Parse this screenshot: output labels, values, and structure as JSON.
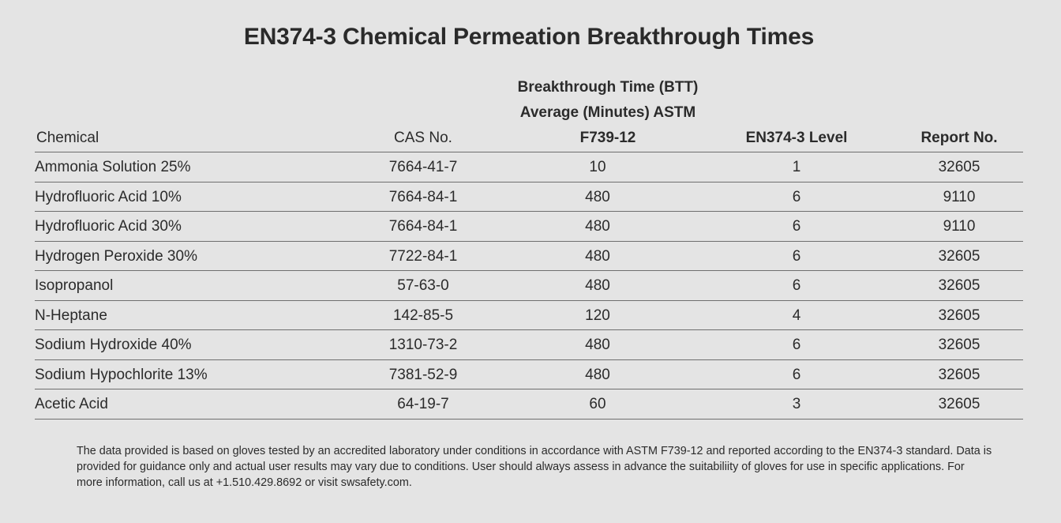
{
  "title": "EN374-3 Chemical Permeation Breakthrough Times",
  "headers": {
    "chemical": "Chemical",
    "cas": "CAS No.",
    "btt_line1": "Breakthrough Time (BTT)",
    "btt_line2": "Average (Minutes) ASTM",
    "btt_line3": "F739-12",
    "level": "EN374-3 Level",
    "report": "Report No."
  },
  "rows": [
    {
      "chemical": "Ammonia Solution 25%",
      "cas": "7664-41-7",
      "btt": "10",
      "level": "1",
      "report": "32605"
    },
    {
      "chemical": "Hydrofluoric Acid 10%",
      "cas": "7664-84-1",
      "btt": "480",
      "level": "6",
      "report": "9110"
    },
    {
      "chemical": "Hydrofluoric Acid 30%",
      "cas": "7664-84-1",
      "btt": "480",
      "level": "6",
      "report": "9110"
    },
    {
      "chemical": "Hydrogen Peroxide 30%",
      "cas": "7722-84-1",
      "btt": "480",
      "level": "6",
      "report": "32605"
    },
    {
      "chemical": "Isopropanol",
      "cas": "57-63-0",
      "btt": "480",
      "level": "6",
      "report": "32605"
    },
    {
      "chemical": "N-Heptane",
      "cas": "142-85-5",
      "btt": "120",
      "level": "4",
      "report": "32605"
    },
    {
      "chemical": "Sodium Hydroxide 40%",
      "cas": "1310-73-2",
      "btt": "480",
      "level": "6",
      "report": "32605"
    },
    {
      "chemical": "Sodium Hypochlorite 13%",
      "cas": "7381-52-9",
      "btt": "480",
      "level": "6",
      "report": "32605"
    },
    {
      "chemical": "Acetic Acid",
      "cas": "64-19-7",
      "btt": "60",
      "level": "3",
      "report": "32605"
    }
  ],
  "footnote": "The data provided is based on gloves tested by an accredited laboratory under conditions in accordance with ASTM F739-12 and reported according to the EN374-3 standard. Data is provided for guidance only and actual user results may vary due to conditions. User should always assess in advance the suitabiliity of gloves for use in specific applications. For more information, call us at +1.510.429.8692 or visit swsafety.com."
}
